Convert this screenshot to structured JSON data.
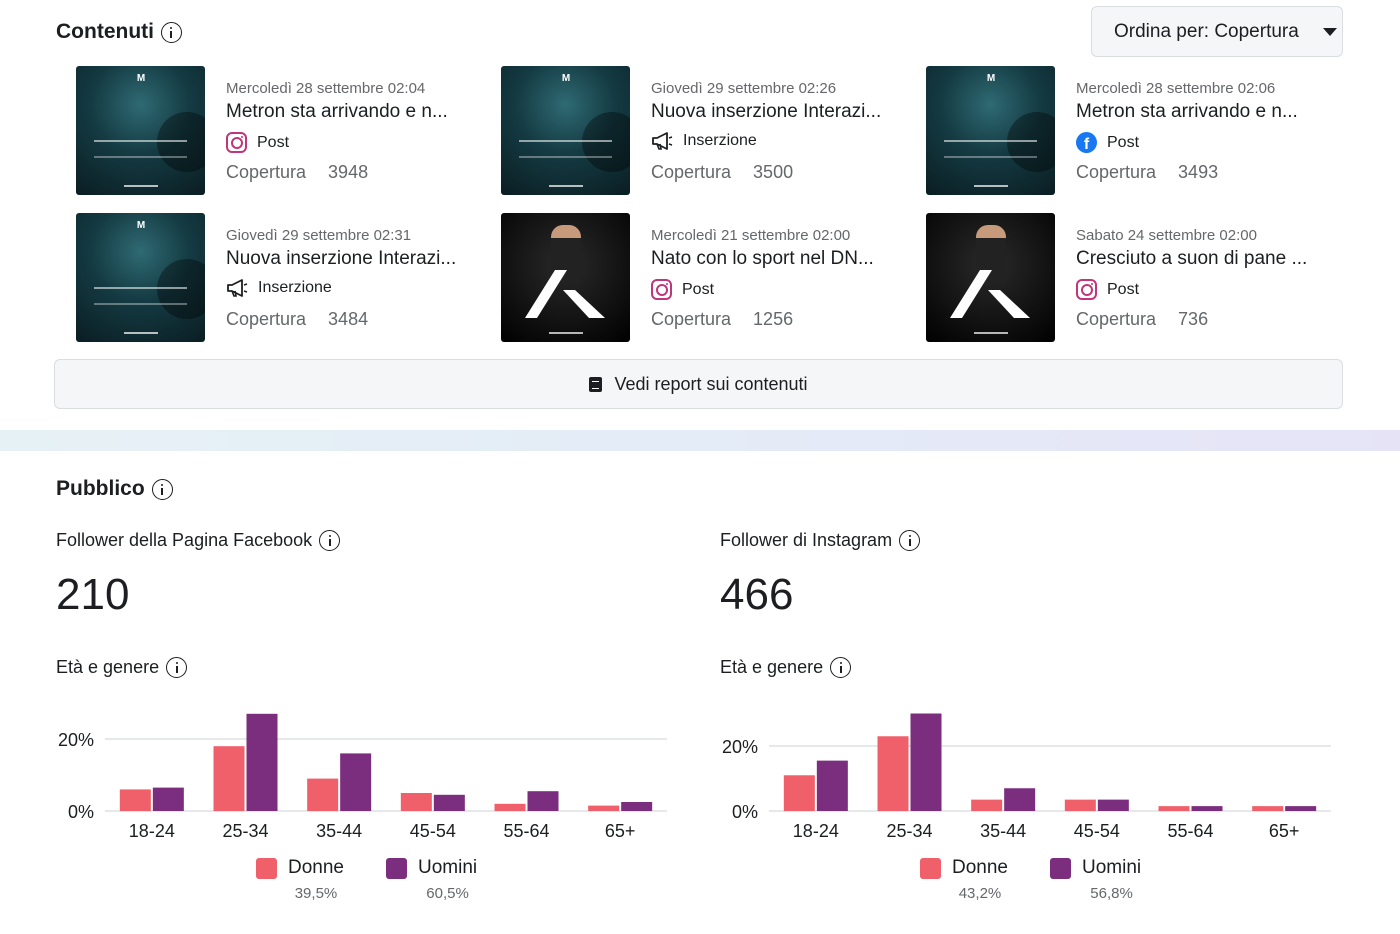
{
  "contents": {
    "title": "Contenuti",
    "sort_label": "Ordina per: Copertura",
    "cards": [
      {
        "date": "Mercoledì 28 settembre 02:04",
        "title": "Metron sta arrivando e n...",
        "type": "Post",
        "platform": "instagram",
        "stat_label": "Copertura",
        "stat_value": "3948",
        "thumb": "teal"
      },
      {
        "date": "Giovedì 29 settembre 02:26",
        "title": "Nuova inserzione Interazi...",
        "type": "Inserzione",
        "platform": "ad",
        "stat_label": "Copertura",
        "stat_value": "3500",
        "thumb": "teal"
      },
      {
        "date": "Mercoledì 28 settembre 02:06",
        "title": "Metron sta arrivando e n...",
        "type": "Post",
        "platform": "facebook",
        "stat_label": "Copertura",
        "stat_value": "3493",
        "thumb": "teal"
      },
      {
        "date": "Giovedì 29 settembre 02:31",
        "title": "Nuova inserzione Interazi...",
        "type": "Inserzione",
        "platform": "ad",
        "stat_label": "Copertura",
        "stat_value": "3484",
        "thumb": "teal"
      },
      {
        "date": "Mercoledì 21 settembre 02:00",
        "title": "Nato con lo sport nel DN...",
        "type": "Post",
        "platform": "instagram",
        "stat_label": "Copertura",
        "stat_value": "1256",
        "thumb": "dark"
      },
      {
        "date": "Sabato 24 settembre 02:00",
        "title": "Cresciuto a suon di pane ...",
        "type": "Post",
        "platform": "instagram",
        "stat_label": "Copertura",
        "stat_value": "736",
        "thumb": "dark"
      }
    ],
    "report_label": "Vedi report sui contenuti"
  },
  "audience": {
    "title": "Pubblico",
    "facebook": {
      "label": "Follower della Pagina Facebook",
      "count": "210",
      "age_title": "Età e genere"
    },
    "instagram": {
      "label": "Follower di Instagram",
      "count": "466",
      "age_title": "Età e genere"
    }
  },
  "colors": {
    "women": "#f0606b",
    "men": "#7b2d7e",
    "grid": "#d8dadf"
  },
  "chart_data": [
    {
      "type": "bar",
      "categories": [
        "18-24",
        "25-34",
        "35-44",
        "45-54",
        "55-64",
        "65+"
      ],
      "series": [
        {
          "name": "Donne",
          "values": [
            6,
            18,
            9,
            5,
            2,
            1.5
          ],
          "share": "39,5%"
        },
        {
          "name": "Uomini",
          "values": [
            6.5,
            27,
            16,
            4.5,
            5.5,
            2.5
          ],
          "share": "60,5%"
        }
      ],
      "yticks": [
        "0%",
        "20%"
      ],
      "ylim": [
        0,
        30
      ]
    },
    {
      "type": "bar",
      "categories": [
        "18-24",
        "25-34",
        "35-44",
        "45-54",
        "55-64",
        "65+"
      ],
      "series": [
        {
          "name": "Donne",
          "values": [
            11,
            23,
            3.5,
            3.5,
            1.5,
            1.5
          ],
          "share": "43,2%"
        },
        {
          "name": "Uomini",
          "values": [
            15.5,
            30,
            7,
            3.5,
            1.5,
            1.5
          ],
          "share": "56,8%"
        }
      ],
      "yticks": [
        "0%",
        "20%"
      ],
      "ylim": [
        0,
        30
      ]
    }
  ]
}
